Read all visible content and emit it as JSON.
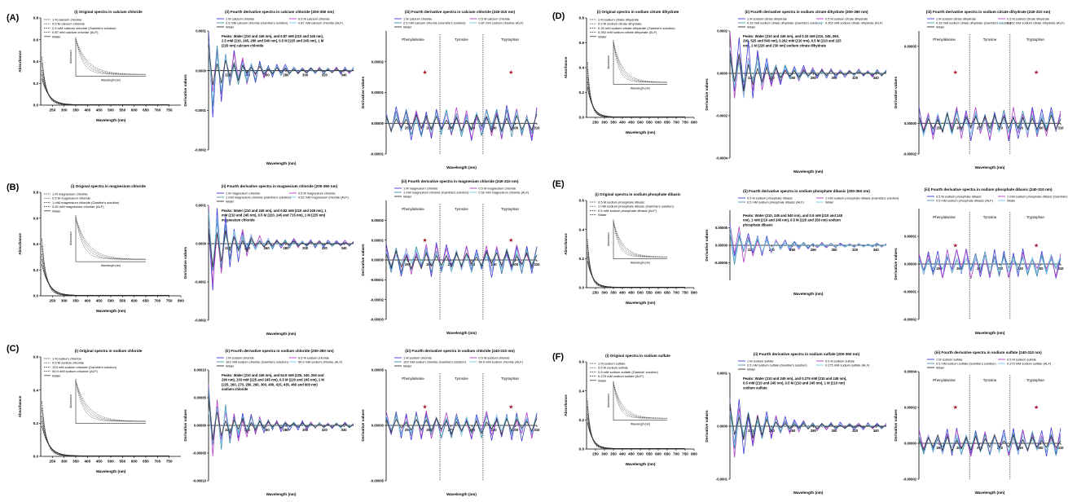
{
  "panels": [
    {
      "letter": "(A)",
      "salt": "calcium chloride"
    },
    {
      "letter": "(B)",
      "salt": "magnesium chloride"
    },
    {
      "letter": "(C)",
      "salt": "sodium chloride"
    },
    {
      "letter": "(D)",
      "salt": "sodium citrate dihydrate"
    },
    {
      "letter": "(E)",
      "salt": "sodium phosphate dibasic"
    },
    {
      "letter": "(F)",
      "salt": "sodium sulfate"
    }
  ],
  "chart_data": [
    {
      "id": "A-i",
      "type": "line",
      "title": "(i) Original spectra in calcium chloride",
      "xlabel": "Wavelength (nm)",
      "ylabel": "Absorbance",
      "xlim": [
        200,
        800
      ],
      "ylim": [
        0,
        0.8
      ],
      "xticks": [
        250,
        300,
        350,
        400,
        450,
        500,
        550,
        600,
        650,
        700,
        750
      ],
      "yticks": [
        0.0,
        0.2,
        0.4,
        0.6,
        0.8
      ],
      "legend": [
        "1 M calcium chloride",
        "0.5 M calcium chloride",
        "2.5 mM calcium chloride (Gamble's solution)",
        "0.87 mM calcium chloride (ALF)",
        "Water"
      ],
      "inset": {
        "ylabel": "Absorbance",
        "xlabel": "Wavelength (nm)"
      }
    },
    {
      "id": "A-ii",
      "type": "line",
      "title": "(ii) Fourth derivative spectra in calcium chloride (200-350 nm)",
      "xlabel": "Wavelength (nm)",
      "ylabel": "Derivative values",
      "xlim": [
        200,
        350
      ],
      "ylim": [
        -0.0002,
        0.0001
      ],
      "xticks": [
        220,
        240,
        260,
        280,
        300,
        320,
        340
      ],
      "yticks": [
        0.0001,
        0.0,
        -0.0001,
        -0.0002
      ],
      "ytick_labels": [
        "0.0001",
        "0.0000",
        "-0.0001",
        "-0.0002"
      ],
      "legend": [
        "1 M calcium chloride",
        "0.5 M calcium chloride",
        "2.5 mM calcium chloride (Gamble's solution)",
        "0.87 mM calcium chloride (ALF)",
        "Water"
      ],
      "annotation": "Peaks: Water (210 and 245 nm), and 0.87 mM (210 and 245 nm), 2.5 mM (210, 245, 280 and 540 nm), 0.5 M (225 and 245 nm), 1 M (220 nm) calcium chloride"
    },
    {
      "id": "A-iii",
      "type": "line",
      "title": "(iii) Fourth derivative spectra in calcium chloride (240-310 nm)",
      "xlabel": "Wavelength (nm)",
      "ylabel": "Derivative values",
      "xlim": [
        240,
        310
      ],
      "ylim": [
        -1e-05,
        3e-05
      ],
      "xticks": [
        250,
        260,
        270,
        280,
        290,
        300,
        310
      ],
      "yticks": [
        2e-05,
        1e-05,
        0.0,
        -1e-05
      ],
      "ytick_labels": [
        "0.00002",
        "0.00001",
        "0.00000",
        "-0.00001"
      ],
      "legend": [
        "1 M calcium chloride",
        "0.5 M calcium chloride",
        "2.5 mM calcium chloride (Gamble's solution)",
        "0.87 mM calcium chloride (ALF)",
        "Water"
      ],
      "regions": [
        "Phenylalanine",
        "Tyrosine",
        "Tryptophan"
      ]
    },
    {
      "id": "B-i",
      "type": "line",
      "title": "(i) Original spectra in magnesium chloride",
      "xlabel": "Wavelength (nm)",
      "ylabel": "Absorbance",
      "xlim": [
        200,
        800
      ],
      "ylim": [
        0,
        0.8
      ],
      "xticks": [
        250,
        300,
        350,
        400,
        450,
        500,
        550,
        600,
        650,
        700,
        750,
        800
      ],
      "yticks": [
        0.0,
        0.2,
        0.4,
        0.6,
        0.8
      ],
      "legend": [
        "1 M magnesium chloride",
        "0.5 M magnesium chloride",
        "1 mM magnesium chloride (Gamble's solution)",
        "0.52 mM magnesium chloride (ALF)",
        "Water"
      ],
      "inset": {
        "ylabel": "Absorbance",
        "xlabel": "Wavelength (nm)"
      }
    },
    {
      "id": "B-ii",
      "type": "line",
      "title": "(ii) Fourth derivative spectra in magnesium chloride (200-350 nm)",
      "xlabel": "Wavelength (nm)",
      "ylabel": "Derivative values",
      "xlim": [
        200,
        350
      ],
      "ylim": [
        -0.0002,
        0.0001
      ],
      "xticks": [
        220,
        240,
        260,
        280,
        300,
        320,
        340
      ],
      "yticks": [
        0.0001,
        0.0,
        -0.0001,
        -0.0002
      ],
      "ytick_labels": [
        "0.0001",
        "0.0000",
        "-0.0001",
        "-0.0002"
      ],
      "legend": [
        "1 M magnesium chloride",
        "0.5 M magnesium chloride",
        "1 mM magnesium chloride (Gamble's solution)",
        "0.52 mM magnesium chloride (ALF)",
        "Water"
      ],
      "annotation": "Peaks: Water (210 and 245 nm), and 0.52 mM (210 and 245 nm), 1 mM (210 and 245 nm), 0.5 M (220, 245 and 715 nm), 1 M (225 nm) magnesium chloride"
    },
    {
      "id": "B-iii",
      "type": "line",
      "title": "(iii) Fourth derivative spectra in magnesium chloride (240-310 nm)",
      "xlabel": "Wavelength (nm)",
      "ylabel": "Derivative values",
      "xlim": [
        240,
        310
      ],
      "ylim": [
        -3e-05,
        3e-05
      ],
      "xticks": [
        250,
        260,
        270,
        280,
        290,
        300,
        310
      ],
      "yticks": [
        2e-05,
        1e-05,
        0.0,
        -1e-05,
        -2e-05,
        -3e-05
      ],
      "ytick_labels": [
        "0.00002",
        "0.00001",
        "0.00000",
        "-0.00001",
        "-0.00002",
        "-0.00003"
      ],
      "legend": [
        "1 M magnesium chloride",
        "0.5 M magnesium chloride",
        "1 mM magnesium chloride (Gamble's solution)",
        "0.52 mM magnesium chloride (ALF)",
        "Water"
      ],
      "regions": [
        "Phenylalanine",
        "Tyrosine",
        "Tryptophan"
      ]
    },
    {
      "id": "C-i",
      "type": "line",
      "title": "(i) Original spectra in sodium chloride",
      "xlabel": "Wavelength (nm)",
      "ylabel": "Absorbance",
      "xlim": [
        200,
        800
      ],
      "ylim": [
        0,
        0.6
      ],
      "xticks": [
        250,
        300,
        350,
        400,
        450,
        500,
        550,
        600,
        650,
        700,
        750
      ],
      "yticks": [
        0.0,
        0.2,
        0.4,
        0.6
      ],
      "legend": [
        "1 M sodium chloride",
        "0.5 M sodium chloride",
        "103 mM sodium chloride (Gamble's solution)",
        "54.9 mM sodium chloride (ALF)",
        "Water"
      ],
      "inset": {
        "ylabel": "Absorbance",
        "xlabel": ""
      }
    },
    {
      "id": "C-ii",
      "type": "line",
      "title": "(ii) Fourth derivative spectra in sodium chloride (200-350 nm)",
      "xlabel": "Wavelength (nm)",
      "ylabel": "Derivative values",
      "xlim": [
        200,
        350
      ],
      "ylim": [
        -0.0001,
        0.0001
      ],
      "xticks": [
        220,
        240,
        260,
        280,
        300,
        320,
        340
      ],
      "yticks": [
        0.0001,
        5e-05,
        0.0,
        -5e-05,
        -0.0001
      ],
      "ytick_labels": [
        "0.00010",
        "0.00005",
        "0.00000",
        "-0.00005",
        "-0.00010"
      ],
      "legend": [
        "1 M sodium chloride",
        "0.5 M sodium chloride",
        "103 mM sodium chloride (Gamble's solution)",
        "54.9 mM sodium chloride (ALF)",
        "Water"
      ],
      "annotation": "Peaks: Water (210 and 245 nm), and 54.9 mM (225, 240, 260 and 290 nm), 103 mM (225 and 245 nm), 0.5 M (220 and 245 nm), 1 M (225, 260, 270, 280, 290, 300, 400, 415, 435, 460 and 600 nm) sodium chloride"
    },
    {
      "id": "C-iii",
      "type": "line",
      "title": "(iii) Fourth derivative spectra in sodium chloride (240-310 nm)",
      "xlabel": "Wavelength (nm)",
      "ylabel": "Derivative values",
      "xlim": [
        240,
        310
      ],
      "ylim": [
        -5e-05,
        5e-05
      ],
      "xticks": [
        250,
        260,
        270,
        280,
        290,
        300,
        310
      ],
      "yticks": [
        5e-05,
        0.0,
        -5e-05
      ],
      "ytick_labels": [
        "0.00005",
        "0.00000",
        "-0.00005"
      ],
      "legend": [
        "1 M sodium chloride",
        "0.5 M sodium chloride",
        "103 mM sodium chloride (Gamble's solution)",
        "54.9 mM sodium chloride (ALF)",
        "Water"
      ],
      "regions": [
        "Phenylalanine",
        "Tyrosine",
        "Tryptophan"
      ]
    },
    {
      "id": "D-i",
      "type": "line",
      "title": "(i) Original spectra in sodium citrate dihydrate",
      "xlabel": "Wavelength (nm)",
      "ylabel": "Absorbance",
      "xlim": [
        200,
        800
      ],
      "ylim": [
        0,
        0.8
      ],
      "xticks": [
        250,
        300,
        350,
        400,
        450,
        500,
        550,
        600,
        650,
        700,
        750,
        800
      ],
      "yticks": [
        0.0,
        0.2,
        0.4,
        0.6,
        0.8
      ],
      "legend": [
        "1 M sodium citrate dihydrate",
        "0.5 M sodium citrate dihydrate",
        "0.33 mM sodium citrate dihydrate (Gamble's solution)",
        "0.262 mM sodium citrate dihydrate (ALF)",
        "Water"
      ],
      "inset": {
        "ylabel": "Absorbance",
        "xlabel": "Wavelength (nm)"
      }
    },
    {
      "id": "D-ii",
      "type": "line",
      "title": "(ii) Fourth derivative spectra in sodium citrate dihydrate (200-350 nm)",
      "xlabel": "Wavelength (nm)",
      "ylabel": "Derivative values",
      "xlim": [
        200,
        350
      ],
      "ylim": [
        -0.0004,
        0.0002
      ],
      "xticks": [
        220,
        240,
        260,
        280,
        300,
        320,
        340
      ],
      "yticks": [
        0.0002,
        0.0,
        -0.0002,
        -0.0004
      ],
      "ytick_labels": [
        "0.0002",
        "0.0000",
        "-0.0002",
        "-0.0004"
      ],
      "legend": [
        "1 M sodium citrate dihydrate",
        "0.5 M sodium citrate dihydrate",
        "0.33 mM sodium citrate dihydrate (Gamble's solution)",
        "0.262 mM sodium citrate dihydrate (ALF)",
        "Water"
      ],
      "annotation": "Peaks: Water (210 and 245 nm), and 0.33 mM (210, 245, 260, 290, 525 and 540 nm), 0.262 mM (210 nm), 0.5 M (210 and 225 nm), 1 M (220 and 230 nm) sodium citrate dihydrate"
    },
    {
      "id": "D-iii",
      "type": "line",
      "title": "(iii) Fourth derivative spectra in sodium citrate dihydrate (240-310 nm)",
      "xlabel": "Wavelength (nm)",
      "ylabel": "Derivative values",
      "xlim": [
        240,
        310
      ],
      "ylim": [
        -2e-05,
        6e-05
      ],
      "xticks": [
        250,
        260,
        270,
        280,
        290,
        300,
        310
      ],
      "yticks": [
        5e-05,
        0.0,
        -2e-05
      ],
      "ytick_labels": [
        "0.00005",
        "0.00000",
        "-0.00002"
      ],
      "legend": [
        "1 M sodium citrate dihydrate",
        "0.5 M sodium citrate dihydrate",
        "0.33 mM sodium citrate dihydrate (Gamble's solution)",
        "0.262 mM sodium citrate dihydrate (ALF)",
        "Water"
      ],
      "regions": [
        "Phenylalanine",
        "Tyrosine",
        "Tryptophan"
      ]
    },
    {
      "id": "E-i",
      "type": "line",
      "title": "(i) Original spectra in sodium phosphate dibasic",
      "xlabel": "Wavelength (nm)",
      "ylabel": "Absorbance",
      "xlim": [
        200,
        800
      ],
      "ylim": [
        0,
        0.6
      ],
      "xticks": [
        250,
        300,
        350,
        400,
        450,
        500,
        550,
        600,
        650,
        700,
        750,
        800
      ],
      "yticks": [
        0.0,
        0.2,
        0.4,
        0.6
      ],
      "legend": [
        "0.5 M sodium phosphate dibasic",
        "1 mM sodium phosphate dibasic (Gamble's solution)",
        "0.5 mM sodium phosphate dibasic (ALF)",
        "Water"
      ],
      "inset": {
        "ylabel": "Absorbance",
        "xlabel": "Wavelength (nm)"
      }
    },
    {
      "id": "E-ii",
      "type": "line",
      "title": "(ii) Fourth derivative spectra in sodium phosphate dibasic (200-350 nm)",
      "xlabel": "Wavelength (nm)",
      "ylabel": "Derivative values",
      "xlim": [
        200,
        350
      ],
      "ylim": [
        -0.0001,
        0.0001
      ],
      "xticks": [
        220,
        240,
        260,
        280,
        300,
        320,
        340
      ],
      "yticks": [
        5e-05,
        0.0,
        -5e-05
      ],
      "ytick_labels": [
        "0.00005",
        "0.00000",
        "-0.00005"
      ],
      "legend": [
        "0.5 M sodium phosphate dibasic",
        "1 mM sodium phosphate dibasic (Gamble's solution)",
        "0.5 mM sodium phosphate dibasic (ALF)",
        "Water"
      ],
      "annotation": "Peaks: Water (210, 245 and 540 nm), and 0.5 mM (210 and 245 nm), 1 mM (210 and 245 nm), 0.5 M (220 and 250 nm) sodium phosphate dibasic"
    },
    {
      "id": "E-iii",
      "type": "line",
      "title": "(iii) Fourth derivative spectra in sodium phosphate dibasic (240-310 nm)",
      "xlabel": "Wavelength (nm)",
      "ylabel": "Derivative values",
      "xlim": [
        240,
        310
      ],
      "ylim": [
        -2e-05,
        2e-05
      ],
      "xticks": [
        250,
        260,
        270,
        280,
        290,
        300,
        310
      ],
      "yticks": [
        1e-05,
        0.0,
        -1e-05,
        -2e-05
      ],
      "ytick_labels": [
        "0.00001",
        "0.00000",
        "-0.00001",
        "-0.00002"
      ],
      "legend": [
        "0.5 M sodium phosphate dibasic",
        "1 mM sodium phosphate dibasic (Gamble's solution)",
        "0.5 mM sodium phosphate dibasic (ALF)",
        "Water"
      ],
      "regions": [
        "Phenylalanine",
        "Tyrosine",
        "Tryptophan"
      ]
    },
    {
      "id": "F-i",
      "type": "line",
      "title": "(i) Original spectra in sodium sulfate",
      "xlabel": "Wavelength (nm)",
      "ylabel": "Absorbance",
      "xlim": [
        200,
        800
      ],
      "ylim": [
        0,
        0.6
      ],
      "xticks": [
        250,
        300,
        350,
        400,
        450,
        500,
        550,
        600,
        650,
        700,
        750,
        800
      ],
      "yticks": [
        0.0,
        0.2,
        0.4,
        0.6
      ],
      "legend": [
        "1 M sodium sulfate",
        "0.5 M sodium sulfate",
        "0.5 mM sodium sulfate (Gamble' solution)",
        "0.275 mM sodium sulfate (ALF)",
        "Water"
      ],
      "inset": {
        "ylabel": "Absorbance",
        "xlabel": "Wavelength (nm)"
      }
    },
    {
      "id": "F-ii",
      "type": "line",
      "title": "(ii) Fourth derivative spectra in sodium sulfate (200-350 nm)",
      "xlabel": "Wavelength (nm)",
      "ylabel": "Derivative values",
      "xlim": [
        200,
        350
      ],
      "ylim": [
        -0.0001,
        0.0001
      ],
      "xticks": [
        220,
        240,
        260,
        280,
        300,
        320,
        340
      ],
      "yticks": [
        0.0001,
        0.0,
        -0.0001
      ],
      "ytick_labels": [
        "0.0001",
        "0.0000",
        "-0.0001"
      ],
      "legend": [
        "1 M sodium sulfate",
        "0.5 M sodium sulfate",
        "0.5 mM sodium sulfate (Gamble's solution)",
        "0.275 mM sodium sulfate (ALF)",
        "Water"
      ],
      "annotation": "Peaks: Water (210 and 245 nm), and 0.275 mM (210 and 245 nm), 0.5 mM (210 and 245 nm), 0.5 M (210 and 245 nm), 1 M (210 nm) sodium sulfate"
    },
    {
      "id": "F-iii",
      "type": "line",
      "title": "(iii) Fourth derivative spectra in sodium sulfate (240-310 nm)",
      "xlabel": "Wavelength (nm)",
      "ylabel": "Derivative values",
      "xlim": [
        240,
        310
      ],
      "ylim": [
        -2e-05,
        4e-05
      ],
      "xticks": [
        250,
        260,
        270,
        280,
        290,
        300,
        310
      ],
      "yticks": [
        4e-05,
        2e-05,
        0.0,
        -2e-05
      ],
      "ytick_labels": [
        "0.00004",
        "0.00002",
        "0.00000",
        "-0.00002"
      ],
      "legend": [
        "1 M sodium sulfate",
        "0.5 M sodium sulfate",
        "0.5 mM sodium sulfate (Gamble's solution)",
        "0.275 mM sodium sulfate (ALF)",
        "Water"
      ],
      "regions": [
        "Phenylalanine",
        "Tyrosine",
        "Tryptophan"
      ]
    }
  ],
  "colors": {
    "series": [
      "#3b3bd6",
      "#b03fc4",
      "#3e8fa8",
      "#7dc7e8",
      "#333333"
    ],
    "marker": "#a8142c",
    "text": "#000000"
  }
}
